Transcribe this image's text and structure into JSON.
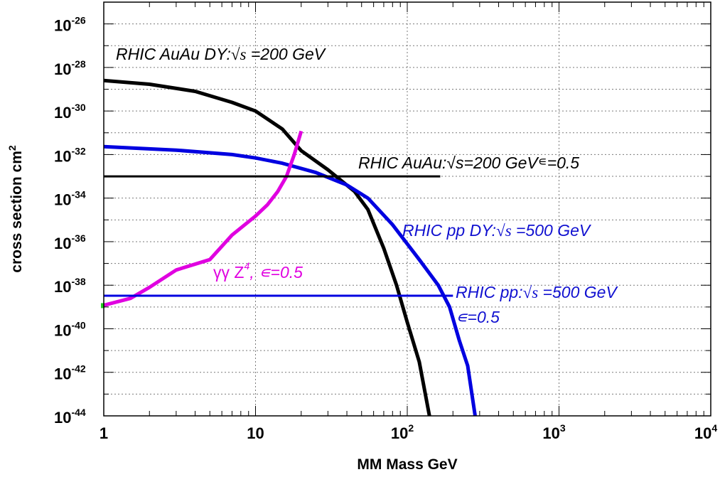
{
  "chart_data": {
    "type": "line",
    "xlabel": "MM Mass GeV",
    "ylabel": "cross section cm",
    "ylabel_sup": "2",
    "xscale": "log",
    "yscale": "log",
    "xlim": [
      1,
      10000
    ],
    "ylim": [
      1e-44,
      1e-25
    ],
    "grid": true,
    "x_ticks": [
      {
        "value": 1,
        "base": "1",
        "exp": ""
      },
      {
        "value": 10,
        "base": "10",
        "exp": ""
      },
      {
        "value": 100,
        "base": "10",
        "exp": "2"
      },
      {
        "value": 1000,
        "base": "10",
        "exp": "3"
      },
      {
        "value": 10000,
        "base": "10",
        "exp": "4"
      }
    ],
    "y_ticks": [
      {
        "value": 1e-26,
        "base": "10",
        "exp": "-26"
      },
      {
        "value": 1e-28,
        "base": "10",
        "exp": "-28"
      },
      {
        "value": 1e-30,
        "base": "10",
        "exp": "-30"
      },
      {
        "value": 1e-32,
        "base": "10",
        "exp": "-32"
      },
      {
        "value": 1e-34,
        "base": "10",
        "exp": "-34"
      },
      {
        "value": 1e-36,
        "base": "10",
        "exp": "-36"
      },
      {
        "value": 1e-38,
        "base": "10",
        "exp": "-38"
      },
      {
        "value": 1e-40,
        "base": "10",
        "exp": "-40"
      },
      {
        "value": 1e-42,
        "base": "10",
        "exp": "-42"
      },
      {
        "value": 1e-44,
        "base": "10",
        "exp": "-44"
      }
    ],
    "series": [
      {
        "name": "RHIC AuAu DY",
        "color": "#000000",
        "points": [
          [
            1,
            2.5e-29
          ],
          [
            2,
            1.7e-29
          ],
          [
            4,
            8e-30
          ],
          [
            7,
            2.5e-30
          ],
          [
            10,
            1e-30
          ],
          [
            15,
            1.5e-31
          ],
          [
            20,
            1.5e-32
          ],
          [
            30,
            2e-33
          ],
          [
            45,
            2e-34
          ],
          [
            55,
            3e-35
          ],
          [
            70,
            5e-37
          ],
          [
            85,
            1e-38
          ],
          [
            100,
            2e-40
          ],
          [
            120,
            3e-42
          ],
          [
            140,
            1e-44
          ]
        ]
      },
      {
        "name": "RHIC pp DY",
        "color": "#0000e0",
        "points": [
          [
            1,
            2.3e-32
          ],
          [
            3,
            1.6e-32
          ],
          [
            7,
            1e-32
          ],
          [
            10,
            7e-33
          ],
          [
            15,
            4e-33
          ],
          [
            25,
            1.5e-33
          ],
          [
            40,
            4e-34
          ],
          [
            55,
            1e-34
          ],
          [
            80,
            6e-36
          ],
          [
            120,
            1.5e-37
          ],
          [
            160,
            1e-38
          ],
          [
            190,
            1e-39
          ],
          [
            220,
            3e-41
          ],
          [
            250,
            2e-42
          ],
          [
            280,
            1e-44
          ]
        ]
      },
      {
        "name": "gamma gamma Z^4",
        "color": "#e000e0",
        "points": [
          [
            1,
            1.2e-39
          ],
          [
            1.5,
            2.5e-39
          ],
          [
            2,
            8e-39
          ],
          [
            3,
            5e-38
          ],
          [
            5,
            1.5e-37
          ],
          [
            7,
            2e-36
          ],
          [
            10,
            1.5e-35
          ],
          [
            12,
            5e-35
          ],
          [
            14,
            2e-34
          ],
          [
            16,
            1e-33
          ],
          [
            18,
            1e-32
          ],
          [
            20,
            1.2e-31
          ]
        ]
      },
      {
        "name": "RHIC AuAu eps=0.5",
        "color": "#000000",
        "points": [
          [
            1,
            1e-33
          ],
          [
            165,
            1e-33
          ]
        ]
      },
      {
        "name": "RHIC pp eps=0.5",
        "color": "#0000e0",
        "points": [
          [
            1,
            3.3e-39
          ],
          [
            200,
            3.3e-39
          ]
        ]
      }
    ],
    "annotations": [
      {
        "id": "auau-dy",
        "parts": [
          "RHIC AuAu DY:",
          "√s",
          " =200 GeV"
        ],
        "color": "#000000"
      },
      {
        "id": "auau-eps",
        "parts": [
          "RHIC AuAu:√s=200 GeV",
          "∊",
          "=0.5"
        ],
        "color": "#000000"
      },
      {
        "id": "pp-dy",
        "parts": [
          "RHIC pp DY:",
          "√s",
          " =500 GeV"
        ],
        "color": "#1010d0"
      },
      {
        "id": "gg",
        "parts": [
          "γγ Z",
          "4",
          ", ∊=0.5"
        ],
        "color": "#e000e0"
      },
      {
        "id": "pp-eps",
        "parts": [
          "RHIC pp:",
          "√s",
          " =500 GeV"
        ],
        "color": "#1010d0"
      },
      {
        "id": "pp-eps2",
        "parts": [
          "∊=0.5"
        ],
        "color": "#1010d0"
      }
    ]
  }
}
